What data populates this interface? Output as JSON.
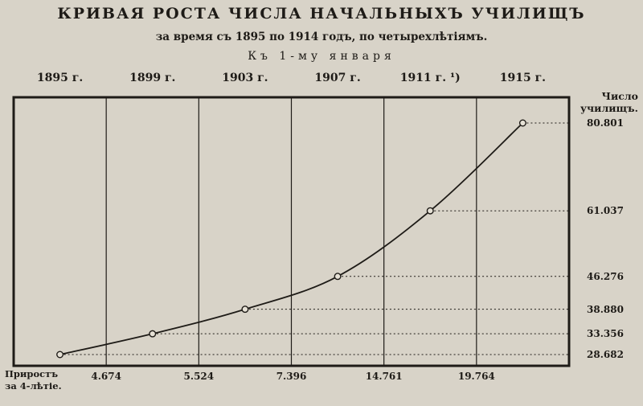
{
  "chart_data": {
    "type": "line",
    "title": "КРИВАЯ РОСТА ЧИСЛА НАЧАЛЬНЫХЪ УЧИЛИЩЪ",
    "subtitle": "за время съ 1895 по 1914 годъ, по четырехлѣтіямъ.",
    "caption": "Къ 1-му января",
    "x_labels": [
      "1895 г.",
      "1899 г.",
      "1903 г.",
      "1907 г.",
      "1911 г. ¹)",
      "1915 г."
    ],
    "x": [
      1895,
      1899,
      1903,
      1907,
      1911,
      1915
    ],
    "values": [
      28682,
      33356,
      38880,
      46276,
      61037,
      80801
    ],
    "value_labels": [
      "28.682",
      "33.356",
      "38.880",
      "46.276",
      "61.037",
      "80.801"
    ],
    "ylabel": [
      "Число",
      "училищъ."
    ],
    "growth_label": [
      "Приростъ",
      "за 4-лѣтіе."
    ],
    "growth": [
      "4.674",
      "5.524",
      "7.396",
      "14.761",
      "19.764"
    ],
    "grid": true
  }
}
